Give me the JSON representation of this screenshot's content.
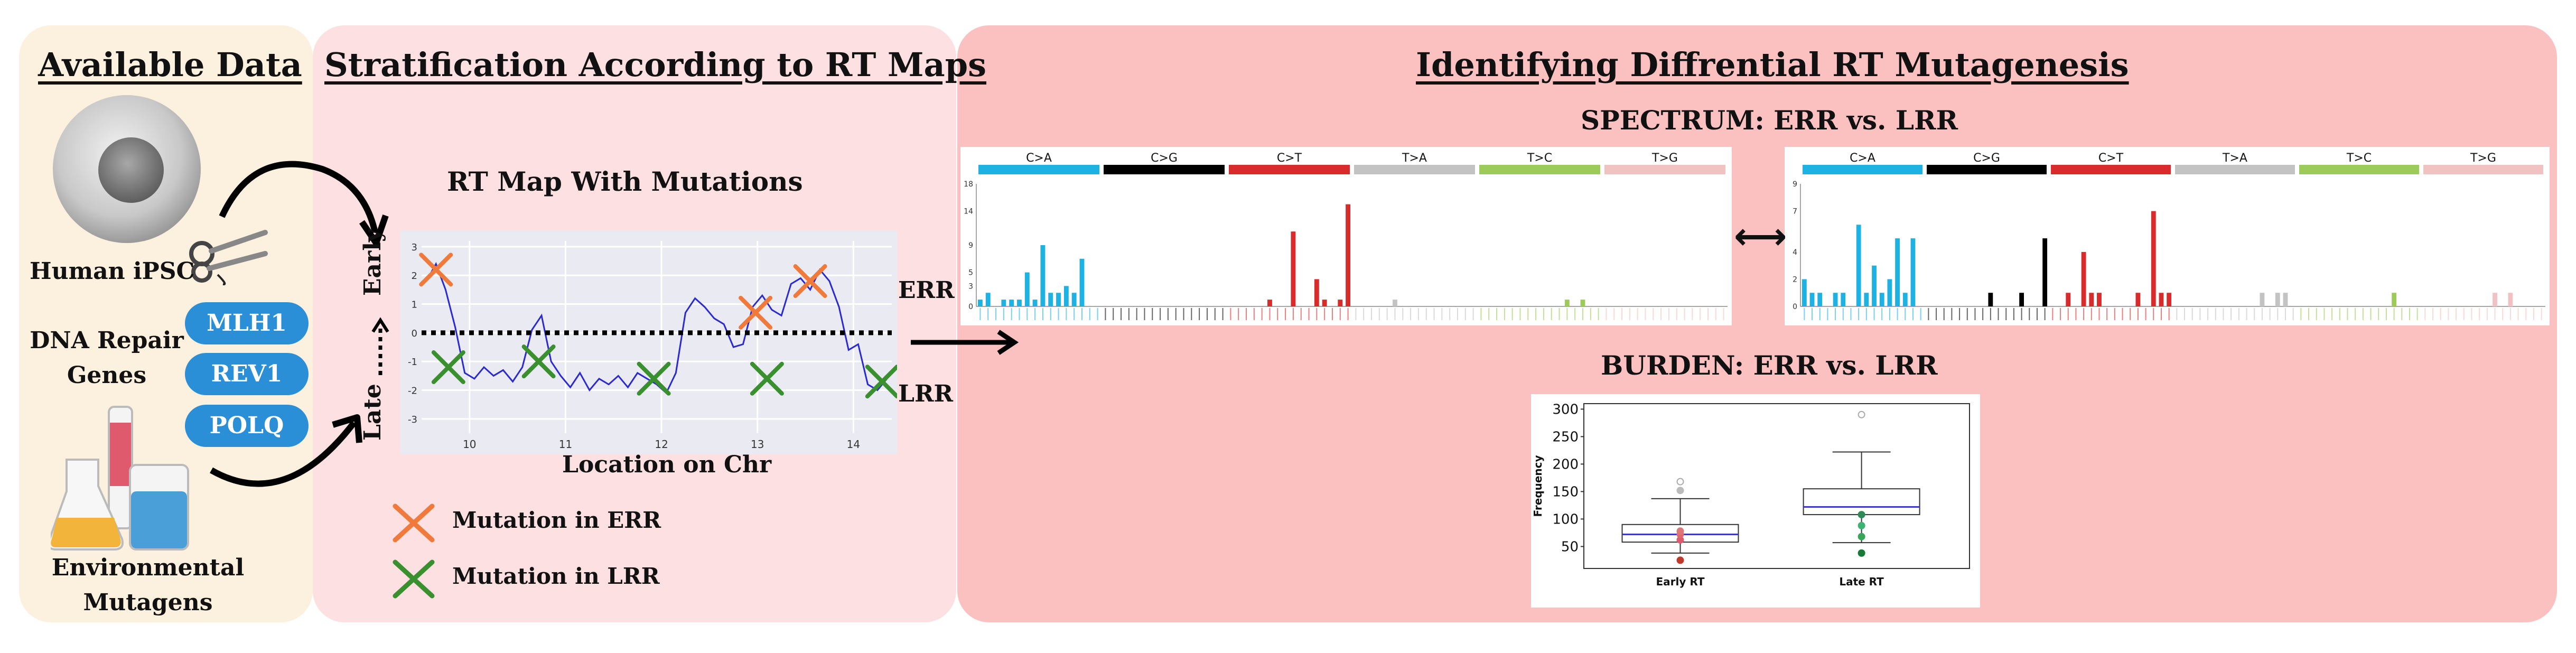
{
  "colors": {
    "panel1": "#fcf0de",
    "panel2": "#fde0e1",
    "panel3": "#fbc1c1",
    "cta": "#1eb2e3",
    "cg": "#000000",
    "ct": "#d92b2b",
    "ta": "#c3c3c3",
    "tc": "#9ccb5a",
    "tg": "#f0c2c2",
    "err_mark": "#f07a3c",
    "lrr_mark": "#3a8f2e",
    "pill": "#2b8fd8"
  },
  "panel1": {
    "title": "Available Data",
    "cell_label": "Human iPSC",
    "dna_repair_label": "DNA Repair\nGenes",
    "genes": [
      "MLH1",
      "REV1",
      "POLQ"
    ],
    "env_label": "Environmental\nMutagens"
  },
  "panel2": {
    "title": "Stratification According to RT Maps",
    "map_title": "RT Map With Mutations",
    "y_early": "Early",
    "y_late": "Late",
    "x_label": "Location on Chr",
    "err_tag": "ERR",
    "lrr_tag": "LRR",
    "legend_err": "Mutation in ERR",
    "legend_lrr": "Mutation in LRR"
  },
  "panel3": {
    "title": "Identifying Diffrential RT Mutagenesis",
    "spectrum_title": "SPECTRUM: ERR vs. LRR",
    "burden_title": "BURDEN: ERR vs. LRR",
    "arrow": "⟷"
  },
  "chart_data": [
    {
      "type": "line",
      "name": "rt_map",
      "xlabel": "Location on Chr",
      "x_ticks": [
        10,
        11,
        12,
        13,
        14
      ],
      "y_ticks": [
        -3,
        -2,
        -1,
        0,
        1,
        2,
        3
      ],
      "xlim": [
        9.5,
        14.4
      ],
      "ylim": [
        -3.5,
        3.2
      ],
      "x": [
        9.55,
        9.65,
        9.75,
        9.85,
        9.95,
        10.05,
        10.15,
        10.25,
        10.35,
        10.45,
        10.55,
        10.65,
        10.75,
        10.85,
        10.95,
        11.05,
        11.15,
        11.25,
        11.35,
        11.45,
        11.55,
        11.65,
        11.75,
        11.85,
        11.95,
        12.05,
        12.15,
        12.25,
        12.35,
        12.45,
        12.55,
        12.65,
        12.75,
        12.85,
        12.95,
        13.05,
        13.15,
        13.25,
        13.35,
        13.45,
        13.55,
        13.65,
        13.75,
        13.85,
        13.95,
        14.05,
        14.15,
        14.25,
        14.35
      ],
      "y": [
        1.8,
        2.4,
        1.5,
        0.2,
        -1.4,
        -1.6,
        -1.2,
        -1.5,
        -1.3,
        -1.7,
        -1.2,
        0.1,
        0.6,
        -1.0,
        -1.5,
        -1.9,
        -1.4,
        -2.0,
        -1.6,
        -1.8,
        -1.5,
        -1.9,
        -1.4,
        -1.6,
        -1.8,
        -2.1,
        -1.4,
        0.7,
        1.2,
        0.9,
        0.5,
        0.3,
        -0.5,
        -0.4,
        0.9,
        1.3,
        0.8,
        0.6,
        1.7,
        1.9,
        1.5,
        2.2,
        1.8,
        0.9,
        -0.6,
        -0.4,
        -1.8,
        -2.0,
        -1.6
      ],
      "err_marks": [
        [
          9.65,
          2.2
        ],
        [
          12.98,
          0.7
        ],
        [
          13.55,
          1.8
        ]
      ],
      "lrr_marks": [
        [
          9.78,
          -1.2
        ],
        [
          10.72,
          -1.0
        ],
        [
          11.92,
          -1.6
        ],
        [
          13.1,
          -1.6
        ],
        [
          14.3,
          -1.7
        ]
      ],
      "threshold": 0
    },
    {
      "type": "bar",
      "name": "spectrum_err",
      "categories_groups": [
        "C>A",
        "C>G",
        "C>T",
        "T>A",
        "T>C",
        "T>G"
      ],
      "y_ticks": [
        0,
        3,
        5,
        9,
        14,
        18
      ],
      "ylim": [
        0,
        18
      ],
      "values": [
        1,
        2,
        0,
        1,
        1,
        1,
        5,
        1,
        9,
        2,
        2,
        3,
        2,
        7,
        0,
        0,
        0,
        0,
        0,
        0,
        0,
        0,
        0,
        0,
        0,
        0,
        0,
        0,
        0,
        0,
        0,
        0,
        0,
        0,
        0,
        0,
        0,
        1,
        0,
        0,
        11,
        0,
        0,
        4,
        1,
        0,
        1,
        15,
        0,
        0,
        0,
        0,
        0,
        1,
        0,
        0,
        0,
        0,
        0,
        0,
        0,
        0,
        0,
        0,
        0,
        0,
        0,
        0,
        0,
        0,
        0,
        0,
        0,
        0,
        0,
        1,
        0,
        1,
        0,
        0,
        0,
        0,
        0,
        0,
        0,
        0,
        0,
        0,
        0,
        0,
        0,
        0,
        0,
        0,
        0,
        0
      ]
    },
    {
      "type": "bar",
      "name": "spectrum_lrr",
      "categories_groups": [
        "C>A",
        "C>G",
        "C>T",
        "T>A",
        "T>C",
        "T>G"
      ],
      "y_ticks": [
        0,
        2,
        4,
        7,
        9
      ],
      "ylim": [
        0,
        9
      ],
      "values": [
        2,
        1,
        1,
        0,
        1,
        1,
        0,
        6,
        1,
        3,
        1,
        2,
        5,
        1,
        5,
        0,
        0,
        0,
        0,
        0,
        0,
        0,
        0,
        0,
        1,
        0,
        0,
        0,
        1,
        0,
        0,
        5,
        0,
        0,
        1,
        0,
        4,
        1,
        1,
        0,
        0,
        0,
        0,
        1,
        0,
        7,
        1,
        1,
        0,
        0,
        0,
        0,
        0,
        0,
        0,
        0,
        0,
        0,
        0,
        1,
        0,
        1,
        1,
        0,
        0,
        0,
        0,
        0,
        0,
        0,
        0,
        0,
        0,
        0,
        0,
        0,
        1,
        0,
        0,
        0,
        0,
        0,
        0,
        0,
        0,
        0,
        0,
        0,
        0,
        1,
        0,
        1,
        0,
        0,
        0,
        0
      ]
    },
    {
      "type": "box",
      "name": "burden",
      "ylabel": "Frequency",
      "categories": [
        "Early RT",
        "Late RT"
      ],
      "y_ticks": [
        50,
        100,
        150,
        200,
        250,
        300
      ],
      "ylim": [
        10,
        310
      ],
      "boxes": [
        {
          "min": 38,
          "q1": 58,
          "median": 72,
          "q3": 90,
          "max": 137,
          "outliers": [
            168
          ],
          "points": [
            25,
            62,
            72,
            78,
            152
          ]
        },
        {
          "min": 57,
          "q1": 108,
          "median": 122,
          "q3": 155,
          "max": 222,
          "outliers": [
            290
          ],
          "points": [
            38,
            68,
            88,
            108
          ]
        }
      ]
    }
  ]
}
